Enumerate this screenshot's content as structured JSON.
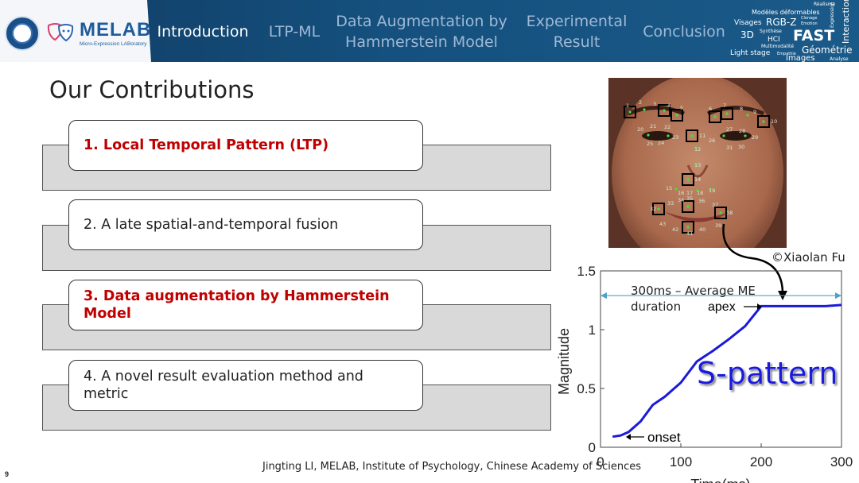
{
  "header": {
    "logo_text": "MELAB",
    "logo_subtitle": "Micro-Expression LABoratory",
    "nav": [
      {
        "label": "Introduction",
        "active": true
      },
      {
        "label": "LTP-ML",
        "active": false
      },
      {
        "label": "Data Augmentation by Hammerstein Model",
        "line1": "Data Augmentation by",
        "line2": "Hammerstein Model",
        "active": false
      },
      {
        "label": "Experimental Result",
        "line1": "Experimental",
        "line2": "Result",
        "active": false
      },
      {
        "label": "Conclusion",
        "active": false
      }
    ],
    "wordcloud": [
      "Réalisme",
      "Modèles déformables",
      "Visages",
      "RGB-Z",
      "Clonage",
      "Emotion",
      "3D",
      "Synthèse",
      "HCI",
      "FAST",
      "Multimodalité",
      "Light stage",
      "Empathie",
      "Géométrie",
      "Images",
      "Analyse",
      "Expression",
      "Interaction"
    ]
  },
  "slide": {
    "title": "Our Contributions",
    "contributions": [
      {
        "text": "1. Local Temporal Pattern (LTP)",
        "highlight": true
      },
      {
        "text": "2. A late spatial-and-temporal fusion",
        "highlight": false
      },
      {
        "text": "3. Data augmentation by Hammerstein Model",
        "line1": "3. Data augmentation by Hammerstein",
        "line2": "Model",
        "highlight": true
      },
      {
        "text": "4. A novel result evaluation method and metric",
        "line1": "4. A novel result evaluation method and",
        "line2": "metric",
        "highlight": false
      }
    ],
    "face_landmark_labels": [
      "1",
      "2",
      "3",
      "4",
      "5",
      "6",
      "7",
      "8",
      "9",
      "10",
      "11",
      "12",
      "13",
      "14",
      "15",
      "16",
      "17",
      "18",
      "19",
      "20",
      "21",
      "22",
      "23",
      "24",
      "25",
      "26",
      "27",
      "28",
      "29",
      "30",
      "31",
      "32",
      "33",
      "34",
      "35",
      "36",
      "37",
      "38",
      "39",
      "40",
      "41",
      "42",
      "43"
    ],
    "image_credit": "©Xiaolan Fu",
    "footer": "Jingting LI, MELAB, Institute of Psychology, Chinese Academy of Sciences",
    "page_number": "9",
    "colors": {
      "highlight": "#c00000",
      "curve": "#1a1adc",
      "duration_arrow": "#4ba3c7",
      "header": "#15507e"
    }
  },
  "chart_data": {
    "type": "line",
    "xlabel": "Time(ms)",
    "ylabel": "Magnitude",
    "xlim": [
      0,
      300
    ],
    "ylim": [
      0,
      1.5
    ],
    "xticks": [
      "0",
      "100",
      "200",
      "300"
    ],
    "yticks": [
      "0",
      "0.5",
      "1",
      "1.5"
    ],
    "series": [
      {
        "x": [
          15,
          25,
          35,
          50,
          65,
          80,
          100,
          120,
          140,
          160,
          180,
          200,
          220,
          240,
          260,
          280,
          300
        ],
        "y": [
          0.09,
          0.1,
          0.13,
          0.22,
          0.36,
          0.43,
          0.55,
          0.73,
          0.82,
          0.92,
          1.03,
          1.2,
          1.2,
          1.2,
          1.2,
          1.2,
          1.21
        ]
      }
    ],
    "annotations": {
      "duration": "300ms – Average ME duration",
      "duration_line1": "300ms – Average ME",
      "duration_line2": "duration",
      "apex": "apex",
      "onset": "onset",
      "pattern": "S-pattern"
    }
  }
}
